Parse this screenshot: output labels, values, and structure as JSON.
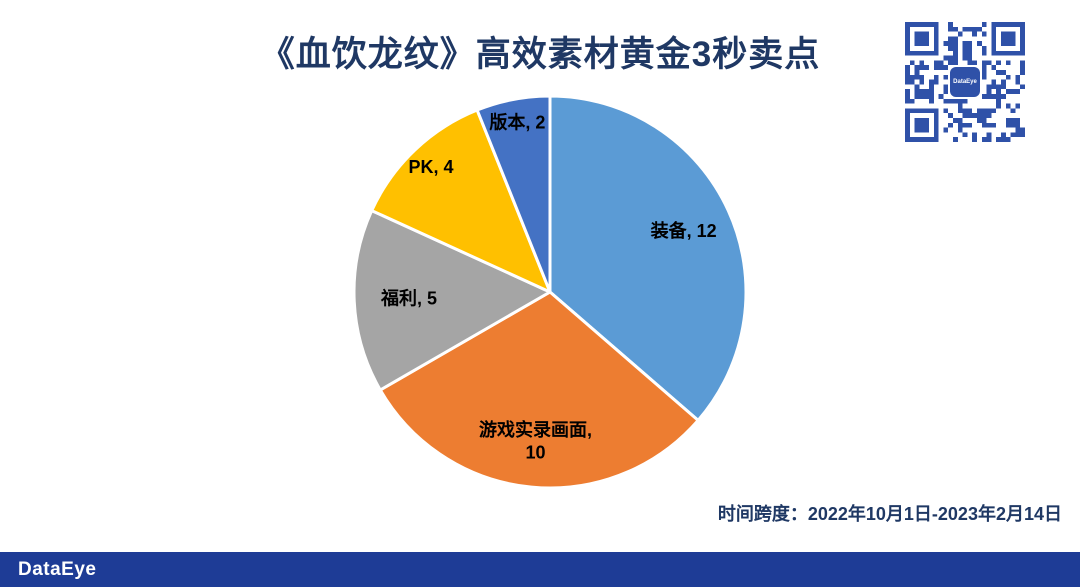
{
  "timespan": "时间跨度：2022年10月1日-2023年2月14日",
  "footer": {
    "brand": "DataEye"
  },
  "qr": {
    "label": "DataEye"
  },
  "theme": {
    "accent": "#1F3864",
    "footer_bg": "#1E3C96",
    "qr_color": "#2F51A8",
    "label_color": "#000000",
    "background": "#FFFFFF"
  },
  "chart_data": {
    "type": "pie",
    "title": "《血饮龙纹》高效素材黄金3秒卖点",
    "categories": [
      "装备",
      "游戏实录画面",
      "福利",
      "PK",
      "版本"
    ],
    "values": [
      12,
      10,
      5,
      4,
      2
    ],
    "colors": [
      "#5B9BD5",
      "#ED7D31",
      "#A5A5A5",
      "#FFC000",
      "#4472C4"
    ],
    "label_format": "{name}, {value}",
    "start_angle_deg": 0,
    "direction": "clockwise",
    "legend": "none",
    "data_labels": "inside-and-edge",
    "total": 33
  }
}
